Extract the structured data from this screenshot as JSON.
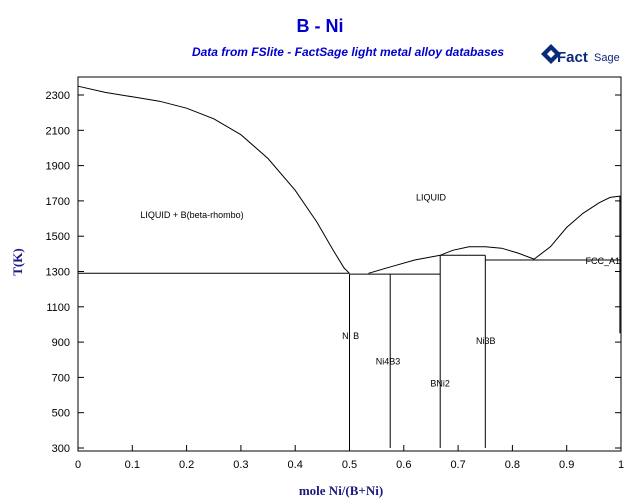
{
  "chart_data": {
    "type": "line",
    "title": "B - Ni",
    "subtitle": "Data from FSlite - FactSage light metal alloy databases",
    "logo_text": "FactSage",
    "xlabel": "mole Ni/(B+Ni)",
    "ylabel": "T(K)",
    "xlim": [
      0,
      1
    ],
    "ylim": [
      300,
      2400
    ],
    "x_ticks": [
      0,
      0.1,
      0.2,
      0.3,
      0.4,
      0.5,
      0.6,
      0.7,
      0.8,
      0.9,
      1
    ],
    "x_tick_labels": [
      "0",
      "0.1",
      "0.2",
      "0.3",
      "0.4",
      "0.5",
      "0.6",
      "0.7",
      "0.8",
      "0.9",
      "1"
    ],
    "y_ticks": [
      300,
      500,
      700,
      900,
      1100,
      1300,
      1500,
      1700,
      1900,
      2100,
      2300
    ],
    "y_tick_labels": [
      "300",
      "500",
      "700",
      "900",
      "1100",
      "1300",
      "1500",
      "1700",
      "1900",
      "2100",
      "2300"
    ],
    "grid": false,
    "series": [
      {
        "points": [
          [
            0,
            2350
          ],
          [
            0.05,
            2315
          ],
          [
            0.1,
            2290
          ],
          [
            0.15,
            2265
          ],
          [
            0.2,
            2225
          ],
          [
            0.25,
            2165
          ],
          [
            0.3,
            2075
          ],
          [
            0.35,
            1940
          ],
          [
            0.4,
            1760
          ],
          [
            0.44,
            1580
          ],
          [
            0.47,
            1420
          ],
          [
            0.49,
            1320
          ],
          [
            0.5,
            1290
          ]
        ]
      },
      {
        "points": [
          [
            0.535,
            1290
          ],
          [
            0.58,
            1330
          ],
          [
            0.62,
            1365
          ],
          [
            0.667,
            1392
          ]
        ]
      },
      {
        "points": [
          [
            0.667,
            1392
          ],
          [
            0.69,
            1420
          ],
          [
            0.72,
            1440
          ],
          [
            0.75,
            1440
          ],
          [
            0.78,
            1432
          ],
          [
            0.81,
            1405
          ],
          [
            0.84,
            1370
          ]
        ]
      },
      {
        "points": [
          [
            0.84,
            1370
          ],
          [
            0.87,
            1440
          ],
          [
            0.9,
            1550
          ],
          [
            0.93,
            1630
          ],
          [
            0.96,
            1690
          ],
          [
            0.98,
            1720
          ],
          [
            1.0,
            1728
          ]
        ]
      },
      {
        "points": [
          [
            0,
            1290
          ],
          [
            0.5,
            1290
          ]
        ]
      },
      {
        "points": [
          [
            0.5,
            1285
          ],
          [
            0.575,
            1285
          ]
        ]
      },
      {
        "points": [
          [
            0.575,
            1285
          ],
          [
            0.667,
            1285
          ]
        ]
      },
      {
        "points": [
          [
            0.667,
            1392
          ],
          [
            0.75,
            1392
          ]
        ]
      },
      {
        "points": [
          [
            0.75,
            1365
          ],
          [
            1.0,
            1365
          ]
        ]
      },
      {
        "points": [
          [
            0.5,
            300
          ],
          [
            0.5,
            1285
          ]
        ]
      },
      {
        "points": [
          [
            0.575,
            300
          ],
          [
            0.575,
            1285
          ]
        ]
      },
      {
        "points": [
          [
            0.667,
            300
          ],
          [
            0.667,
            1392
          ]
        ]
      },
      {
        "points": [
          [
            0.75,
            300
          ],
          [
            0.75,
            1392
          ]
        ]
      },
      {
        "points": [
          [
            0.998,
            950
          ],
          [
            0.998,
            1728
          ]
        ]
      }
    ],
    "annotations": [
      {
        "text": "LIQUID + B(beta-rhombo)",
        "x": 0.21,
        "y": 1620
      },
      {
        "text": "LIQUID",
        "x": 0.65,
        "y": 1720
      },
      {
        "text": "Ni B",
        "x": 0.502,
        "y": 935
      },
      {
        "text": "Ni4B3",
        "x": 0.571,
        "y": 790
      },
      {
        "text": "BNi2",
        "x": 0.667,
        "y": 665
      },
      {
        "text": "Ni3B",
        "x": 0.751,
        "y": 905
      },
      {
        "text": "FCC_A1",
        "x": 0.99,
        "y": 1360
      }
    ]
  },
  "colors": {
    "title": "#0000cc",
    "axis_label": "#1a1a80",
    "lines": "#000000",
    "logo": "#0a2a7a"
  }
}
